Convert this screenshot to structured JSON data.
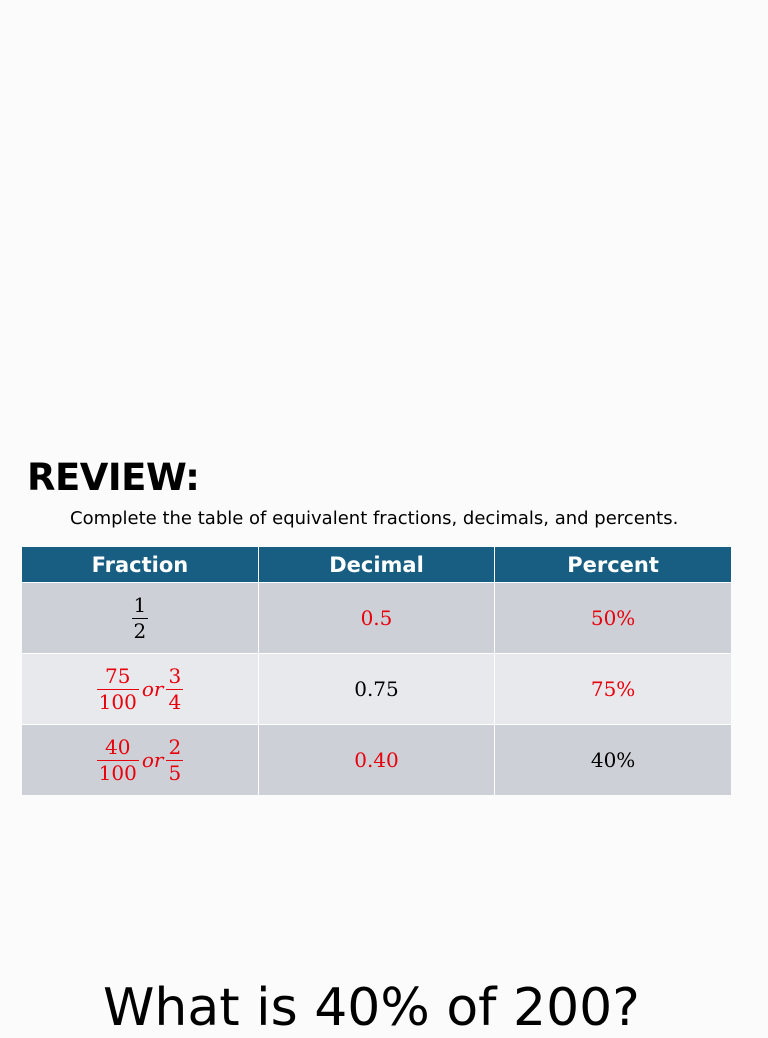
{
  "slide": {
    "title": "REVIEW:",
    "instructions": "Complete the table of equivalent fractions, decimals, and percents.",
    "question": "What is 40% of 200?"
  },
  "table": {
    "headers": [
      "Fraction",
      "Decimal",
      "Percent"
    ],
    "rows": [
      {
        "fraction": {
          "primary": {
            "numerator": "1",
            "denominator": "2"
          }
        },
        "decimal": "0.5",
        "percent": "50%"
      },
      {
        "fraction": {
          "primary": {
            "numerator": "75",
            "denominator": "100"
          },
          "connector": "or",
          "secondary": {
            "numerator": "3",
            "denominator": "4"
          }
        },
        "decimal": "0.75",
        "percent": "75%"
      },
      {
        "fraction": {
          "primary": {
            "numerator": "40",
            "denominator": "100"
          },
          "connector": "or",
          "secondary": {
            "numerator": "2",
            "denominator": "5"
          }
        },
        "decimal": "0.40",
        "percent": "40%"
      }
    ]
  },
  "colors": {
    "header_bg": "#175e82",
    "row_dark_bg": "#cdd1d7",
    "row_light_bg": "#e7e9ec",
    "answer_red": "#e8000b"
  }
}
